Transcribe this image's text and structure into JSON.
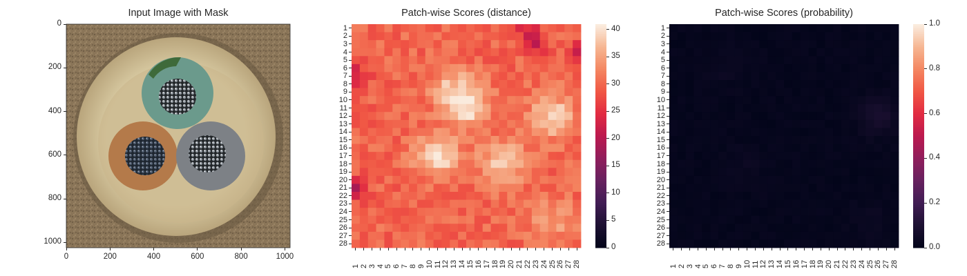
{
  "chart_data": [
    {
      "type": "image",
      "title": "Input Image with Mask",
      "xlim": [
        0,
        1024
      ],
      "ylim": [
        1024,
        0
      ],
      "xticks": [
        "0",
        "200",
        "400",
        "600",
        "800",
        "1000"
      ],
      "yticks": [
        "0",
        "200",
        "400",
        "600",
        "800",
        "1000"
      ],
      "image": {
        "content": "cross-section of a three-core cable: teal core at top, orange core at lower-left, grey core at lower-right, each with a dark stranded conductor, inside a cream-colored jacket on a brown textured background"
      }
    },
    {
      "type": "heatmap",
      "title": "Patch-wise Scores (distance)",
      "rows": 28,
      "cols": 28,
      "row_labels": [
        "1",
        "2",
        "3",
        "4",
        "5",
        "6",
        "7",
        "8",
        "9",
        "10",
        "11",
        "12",
        "13",
        "14",
        "15",
        "16",
        "17",
        "18",
        "19",
        "20",
        "21",
        "22",
        "23",
        "24",
        "25",
        "26",
        "27",
        "28"
      ],
      "col_labels": [
        "1",
        "2",
        "3",
        "4",
        "5",
        "6",
        "7",
        "8",
        "9",
        "10",
        "11",
        "12",
        "13",
        "14",
        "15",
        "16",
        "17",
        "18",
        "19",
        "20",
        "21",
        "22",
        "23",
        "24",
        "25",
        "26",
        "27",
        "28"
      ],
      "colorbar": {
        "range": [
          0,
          41
        ],
        "ticks": [
          "0",
          "5",
          "10",
          "15",
          "20",
          "25",
          "30",
          "35",
          "40"
        ]
      },
      "colormap": "rocket",
      "approx_values": {
        "background": 30,
        "hot_spots": [
          {
            "row": 9,
            "col": 13,
            "value": 38
          },
          {
            "row": 11,
            "col": 15,
            "value": 38
          },
          {
            "row": 12,
            "col": 25,
            "value": 39
          },
          {
            "row": 17,
            "col": 11,
            "value": 40
          },
          {
            "row": 18,
            "col": 19,
            "value": 39
          },
          {
            "row": 25,
            "col": 25,
            "value": 35
          }
        ],
        "low_spots": [
          {
            "row": 7,
            "col": 1,
            "value": 22
          },
          {
            "row": 21,
            "col": 1,
            "value": 21
          },
          {
            "row": 1,
            "col": 22,
            "value": 24
          },
          {
            "row": 3,
            "col": 23,
            "value": 23
          },
          {
            "row": 4,
            "col": 28,
            "value": 24
          }
        ]
      }
    },
    {
      "type": "heatmap",
      "title": "Patch-wise Scores (probability)",
      "rows": 28,
      "cols": 28,
      "row_labels": [
        "1",
        "2",
        "3",
        "4",
        "5",
        "6",
        "7",
        "8",
        "9",
        "10",
        "11",
        "12",
        "13",
        "14",
        "15",
        "16",
        "17",
        "18",
        "19",
        "20",
        "21",
        "22",
        "23",
        "24",
        "25",
        "26",
        "27",
        "28"
      ],
      "col_labels": [
        "1",
        "2",
        "3",
        "4",
        "5",
        "6",
        "7",
        "8",
        "9",
        "10",
        "11",
        "12",
        "13",
        "14",
        "15",
        "16",
        "17",
        "18",
        "19",
        "20",
        "21",
        "22",
        "23",
        "24",
        "25",
        "26",
        "27",
        "28"
      ],
      "colorbar": {
        "range": [
          0.0,
          1.0
        ],
        "ticks": [
          "0.0",
          "0.2",
          "0.4",
          "0.6",
          "0.8",
          "1.0"
        ]
      },
      "colormap": "rocket",
      "approx_values": {
        "background": 0.01,
        "hot_spots": [
          {
            "row": 12,
            "col": 26,
            "value": 0.08
          },
          {
            "row": 6,
            "col": 7,
            "value": 0.03
          },
          {
            "row": 18,
            "col": 10,
            "value": 0.03
          },
          {
            "row": 25,
            "col": 25,
            "value": 0.03
          }
        ]
      }
    }
  ]
}
